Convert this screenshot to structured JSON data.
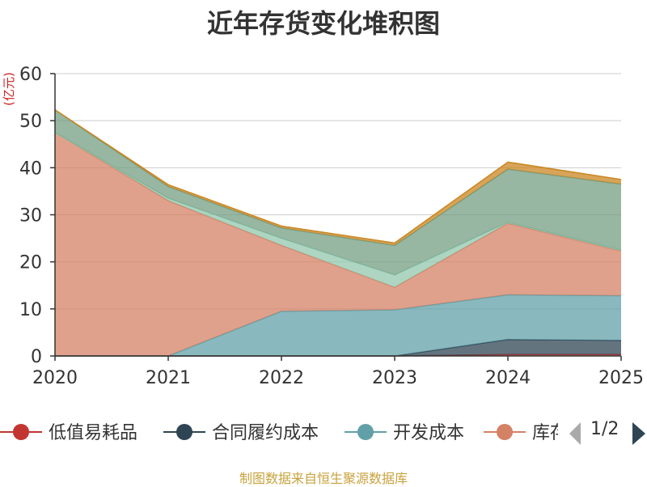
{
  "chart_data": {
    "type": "area",
    "stacked": true,
    "title": "近年存货变化堆积图",
    "unit_label": "(亿元)",
    "x": [
      "2020",
      "2021",
      "2022",
      "2023",
      "2024",
      "2025"
    ],
    "ylim": [
      0,
      60
    ],
    "yticks": [
      0,
      10,
      20,
      30,
      40,
      50,
      60
    ],
    "grid": true,
    "legend_position": "bottom",
    "series": [
      {
        "name": "低值易耗品",
        "color": "#c23531",
        "values": [
          0,
          0,
          0,
          0,
          0.3,
          0.3
        ]
      },
      {
        "name": "合同履约成本",
        "color": "#2f4554",
        "values": [
          0,
          0,
          0,
          0,
          3.2,
          3.0
        ]
      },
      {
        "name": "开发成本",
        "color": "#61a0a8",
        "values": [
          0,
          0,
          9.5,
          9.8,
          9.5,
          9.5
        ]
      },
      {
        "name": "库存商品",
        "color": "#d48265",
        "values": [
          47.5,
          33.0,
          14.0,
          4.8,
          15.2,
          9.5
        ]
      },
      {
        "color": "#91c7ae",
        "values": [
          0,
          0.5,
          1.5,
          2.6,
          0.2,
          0.2
        ]
      },
      {
        "color": "#749f83",
        "values": [
          4.8,
          2.5,
          2.2,
          6.3,
          11.3,
          14.0
        ]
      },
      {
        "color": "#ca8622",
        "values": [
          0,
          0.4,
          0.4,
          0.5,
          1.5,
          1.0
        ]
      }
    ]
  },
  "legend": {
    "page": "1/2",
    "visible_count": 4
  },
  "footer": "制图数据来自恒生聚源数据库"
}
